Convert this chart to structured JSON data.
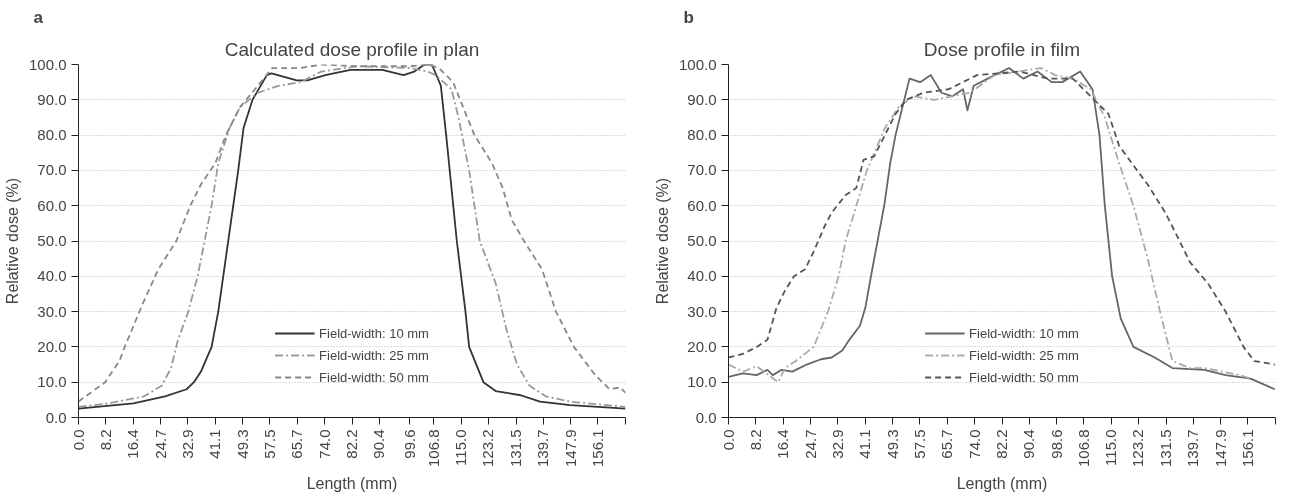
{
  "chart_data": [
    {
      "type": "line",
      "title": "Calculated dose profile in plan",
      "xlabel": "Length (mm)",
      "ylabel": "Relative dose (%)",
      "annotations": [
        "a"
      ],
      "xlim": [
        0,
        164.4
      ],
      "ylim": [
        0,
        100
      ],
      "xticks": [
        {
          "value": 0,
          "label": "0.0"
        },
        8.2,
        16.4,
        24.7,
        32.9,
        41.1,
        49.3,
        57.5,
        65.7,
        {
          "value": 74,
          "label": "74.0"
        },
        82.2,
        90.4,
        99.6,
        106.8,
        {
          "value": 115,
          "label": "115.0"
        },
        123.2,
        131.5,
        139.7,
        147.9,
        156.1,
        {
          "value": 164.4,
          "label": null
        }
      ],
      "yticks": [
        {
          "value": 0,
          "label": "0.0"
        },
        {
          "value": 10,
          "label": "10.0"
        },
        {
          "value": 20,
          "label": "20.0"
        },
        {
          "value": 30,
          "label": "30.0"
        },
        {
          "value": 40,
          "label": "40.0"
        },
        {
          "value": 50,
          "label": "50.0"
        },
        {
          "value": 60,
          "label": "60.0"
        },
        {
          "value": 70,
          "label": "70.0"
        },
        {
          "value": 80,
          "label": "80.0"
        },
        {
          "value": 90,
          "label": "90.0"
        },
        {
          "value": 100,
          "label": "100.0"
        }
      ],
      "grid": "y",
      "legend": "bottom",
      "series": [
        {
          "name": "Field-width: 10 mm",
          "color": "#333333",
          "line_style": "solid",
          "x": [
            0,
            16.5,
            26,
            32.5,
            34.7,
            36.8,
            40,
            42,
            45,
            48,
            49.6,
            52.3,
            56.6,
            58,
            65.6,
            68.8,
            74.2,
            81.7,
            91.3,
            97.7,
            100.9,
            104,
            106.2,
            108.9,
            110.5,
            113.7,
            116.3,
            117.4,
            121.7,
            125.4,
            132.9,
            138.7,
            147.8,
            164.4
          ],
          "values": [
            2.5,
            4,
            6,
            8,
            10,
            13,
            20,
            30,
            50,
            70,
            82,
            90,
            97,
            97.5,
            95.5,
            95.5,
            97,
            98.5,
            98.5,
            97,
            98,
            100,
            100,
            94,
            80,
            50,
            30,
            20,
            10,
            7.5,
            6.3,
            4.5,
            3.5,
            2.5
          ]
        },
        {
          "name": "Field-width: 25 mm",
          "color": "#999999",
          "line_style": "dashdot",
          "x": [
            0,
            9,
            19.7,
            25,
            27.8,
            29.9,
            33,
            35.8,
            37.9,
            40,
            42,
            45.4,
            48.6,
            53.9,
            60.3,
            66.7,
            73,
            83.8,
            99.8,
            105,
            107.3,
            112.1,
            114.2,
            117.4,
            120.6,
            125.4,
            128.6,
            131.8,
            135.6,
            140.4,
            147.8,
            158.5,
            164.4
          ],
          "values": [
            3,
            4,
            6,
            9,
            14,
            22,
            30,
            40,
            50,
            60,
            72,
            82,
            88,
            92,
            94,
            95,
            98,
            99.5,
            99,
            98,
            97,
            93,
            85,
            70,
            50,
            38,
            25,
            15,
            9,
            6,
            4.5,
            3.5,
            3
          ]
        },
        {
          "name": "Field-width: 50 mm",
          "color": "#888888",
          "line_style": "dashed",
          "x": [
            0,
            8,
            12.3,
            13.9,
            19.2,
            24,
            29.4,
            33.6,
            36.8,
            41.1,
            44.3,
            48.6,
            53.9,
            58.2,
            66.7,
            73,
            83.8,
            99.8,
            105,
            108.3,
            112.6,
            114.7,
            119,
            124.3,
            127.5,
            130.2,
            133.9,
            139.3,
            143.5,
            148.9,
            155.3,
            159.6,
            162.8,
            164.4
          ],
          "values": [
            4.5,
            10,
            16,
            20,
            32,
            42,
            50,
            60,
            66,
            72,
            80,
            88,
            94,
            99,
            99,
            100,
            99.5,
            99.5,
            100,
            99,
            95,
            90,
            80,
            72,
            65,
            56,
            50,
            42,
            30,
            20,
            12,
            8,
            8.5,
            7
          ]
        }
      ]
    },
    {
      "type": "line",
      "title": "Dose profile in film",
      "xlabel": "Length (mm)",
      "ylabel": "Relative dose (%)",
      "annotations": [
        "b"
      ],
      "xlim": [
        0,
        164.4
      ],
      "ylim": [
        0,
        100
      ],
      "xticks": [
        {
          "value": 0,
          "label": "0.0"
        },
        8.2,
        16.4,
        24.7,
        32.9,
        41.1,
        49.3,
        57.5,
        65.7,
        {
          "value": 74,
          "label": "74.0"
        },
        82.2,
        90.4,
        98.6,
        106.8,
        {
          "value": 115,
          "label": "115.0"
        },
        123.2,
        131.5,
        139.7,
        147.9,
        156.1,
        {
          "value": 164.4,
          "label": null
        }
      ],
      "yticks": [
        {
          "value": 0,
          "label": "0.0"
        },
        {
          "value": 10,
          "label": "10.0"
        },
        {
          "value": 20,
          "label": "20.0"
        },
        {
          "value": 30,
          "label": "30.0"
        },
        {
          "value": 40,
          "label": "40.0"
        },
        {
          "value": 50,
          "label": "50.0"
        },
        {
          "value": 60,
          "label": "60.0"
        },
        {
          "value": 70,
          "label": "70.0"
        },
        {
          "value": 80,
          "label": "80.0"
        },
        {
          "value": 90,
          "label": "90.0"
        },
        {
          "value": 100,
          "label": "100.0"
        }
      ],
      "grid": "y",
      "legend": "bottom",
      "series": [
        {
          "name": "Field-width: 10 mm",
          "color": "#666666",
          "line_style": "solid",
          "x": [
            0,
            4.3,
            8.5,
            11.7,
            13.3,
            16,
            19.2,
            23.5,
            27.8,
            31,
            34.2,
            36.3,
            39.5,
            41.1,
            43.2,
            44.8,
            46.8,
            48.6,
            50.2,
            52.3,
            54.4,
            57.6,
            60.8,
            64,
            67.3,
            70.5,
            71.8,
            73.7,
            77.9,
            84.3,
            88.6,
            92.9,
            97.1,
            100.3,
            105.7,
            109.4,
            111.5,
            113.1,
            115.3,
            117.9,
            121.7,
            128.1,
            133.4,
            143,
            149.4,
            156.9,
            164.2
          ],
          "values": [
            11.5,
            12.5,
            12,
            13.5,
            12,
            13.5,
            13,
            15,
            16.5,
            17,
            19,
            22,
            26,
            31,
            42,
            50,
            60,
            72,
            80,
            88,
            96,
            95,
            97,
            92,
            91,
            93,
            87,
            94,
            96,
            99,
            96,
            98,
            95,
            95,
            98,
            93,
            80,
            60,
            40,
            28,
            20,
            17,
            14,
            13.5,
            12,
            11,
            8
          ]
        },
        {
          "name": "Field-width: 25 mm",
          "color": "#aaaaaa",
          "line_style": "dashdot",
          "x": [
            0,
            4.3,
            8.5,
            14.9,
            17,
            20.2,
            25.6,
            29.9,
            33.1,
            35.2,
            38.4,
            41.6,
            47,
            51.2,
            55.5,
            61.9,
            72.6,
            80,
            94,
            98.2,
            103.5,
            108.9,
            113.1,
            117.4,
            121.7,
            126,
            129.7,
            133.4,
            138.7,
            143,
            153.7,
            156.9
          ],
          "values": [
            15,
            13,
            14.5,
            10,
            14,
            16,
            20,
            30,
            40,
            50,
            60,
            70,
            82,
            88,
            91,
            90,
            92,
            97,
            99,
            97,
            96,
            93,
            85,
            72,
            60,
            45,
            30,
            16,
            14,
            14,
            12,
            11
          ]
        },
        {
          "name": "Field-width: 50 mm",
          "color": "#555555",
          "line_style": "dashed",
          "x": [
            0,
            4.3,
            8.5,
            11.7,
            14.4,
            17,
            19.7,
            23,
            25.6,
            28.8,
            31,
            35.2,
            38.4,
            40.6,
            43.8,
            47,
            50.2,
            53.4,
            58.7,
            66.2,
            74.7,
            87.5,
            96,
            103.5,
            109.9,
            114.2,
            117.4,
            122.8,
            126,
            131.3,
            134.5,
            138.7,
            144.1,
            149.4,
            154.8,
            158,
            164.2
          ],
          "values": [
            17,
            18,
            20,
            22,
            31,
            36,
            40,
            42,
            47,
            54,
            58,
            63,
            65,
            73,
            74,
            80,
            86,
            90,
            92,
            93,
            97,
            98,
            96,
            96,
            90,
            86,
            77,
            70,
            66,
            58,
            52,
            44,
            38,
            30,
            20,
            16,
            15
          ]
        }
      ]
    }
  ]
}
